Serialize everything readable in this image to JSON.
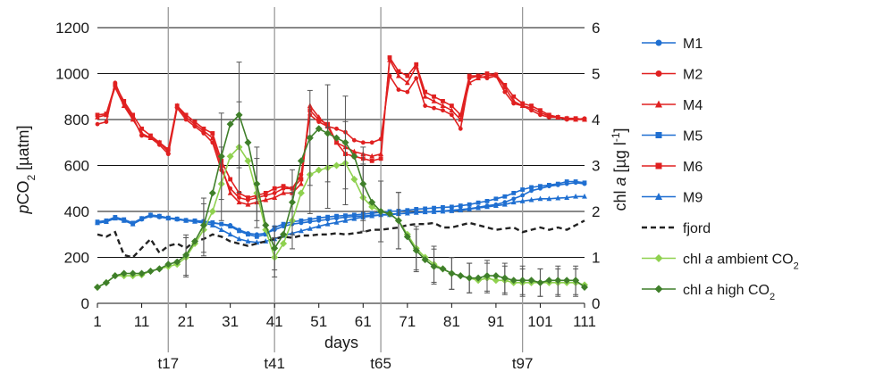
{
  "chart_data": {
    "type": "line",
    "xlabel": "days",
    "ylabel_left": "pCO2 [µatm]",
    "ylabel_right": "chl a [µg l-1]",
    "xlim": [
      1,
      111
    ],
    "ylim_left": [
      0,
      1200
    ],
    "ylim_right": [
      0,
      6
    ],
    "x_ticks": [
      "1",
      "11",
      "21",
      "31",
      "41",
      "51",
      "61",
      "71",
      "81",
      "91",
      "101",
      "111"
    ],
    "y_left_ticks": [
      "0",
      "200",
      "400",
      "600",
      "800",
      "1000",
      "1200"
    ],
    "y_right_ticks": [
      "0",
      "1",
      "2",
      "3",
      "4",
      "5",
      "6"
    ],
    "grid": "horizontal",
    "legend_position": "right",
    "vertical_markers": [
      {
        "x": 17,
        "label": "t17"
      },
      {
        "x": 41,
        "label": "t41"
      },
      {
        "x": 65,
        "label": "t65"
      },
      {
        "x": 97,
        "label": "t97"
      }
    ],
    "series": [
      {
        "name": "M1",
        "axis": "left",
        "color": "#1f6fd1",
        "marker": "circle",
        "x": [
          1,
          3,
          5,
          7,
          9,
          11,
          13,
          15,
          17,
          19,
          21,
          23,
          25,
          27,
          29,
          31,
          33,
          35,
          37,
          39,
          41,
          43,
          45,
          47,
          49,
          51,
          53,
          55,
          57,
          59,
          61,
          63,
          65,
          67,
          69,
          71,
          73,
          75,
          77,
          79,
          81,
          83,
          85,
          87,
          89,
          91,
          93,
          95,
          97,
          99,
          101,
          103,
          105,
          107,
          109,
          111
        ],
        "y": [
          350,
          355,
          370,
          360,
          345,
          365,
          380,
          375,
          370,
          365,
          360,
          358,
          355,
          350,
          345,
          340,
          320,
          305,
          300,
          305,
          320,
          335,
          345,
          350,
          355,
          360,
          365,
          370,
          375,
          378,
          380,
          383,
          385,
          388,
          390,
          393,
          396,
          398,
          400,
          402,
          405,
          408,
          412,
          418,
          425,
          430,
          440,
          455,
          470,
          490,
          500,
          510,
          515,
          520,
          525,
          520
        ]
      },
      {
        "name": "M2",
        "axis": "left",
        "color": "#e02020",
        "marker": "circle",
        "x": [
          1,
          3,
          5,
          7,
          9,
          11,
          13,
          15,
          17,
          19,
          21,
          23,
          25,
          27,
          29,
          31,
          33,
          35,
          37,
          39,
          41,
          43,
          45,
          47,
          49,
          51,
          53,
          55,
          57,
          59,
          61,
          63,
          65,
          67,
          69,
          71,
          73,
          75,
          77,
          79,
          81,
          83,
          85,
          87,
          89,
          91,
          93,
          95,
          97,
          99,
          101,
          103,
          105,
          107,
          109,
          111
        ],
        "y": [
          780,
          790,
          960,
          870,
          810,
          730,
          720,
          690,
          650,
          850,
          800,
          770,
          740,
          700,
          580,
          500,
          460,
          450,
          460,
          470,
          480,
          500,
          500,
          560,
          820,
          790,
          770,
          760,
          745,
          710,
          700,
          700,
          715,
          990,
          930,
          920,
          980,
          860,
          850,
          840,
          820,
          760,
          980,
          990,
          980,
          990,
          920,
          870,
          860,
          840,
          820,
          810,
          810,
          800,
          800,
          805
        ]
      },
      {
        "name": "M4",
        "axis": "left",
        "color": "#e02020",
        "marker": "triangle",
        "x": [
          1,
          3,
          5,
          7,
          9,
          11,
          13,
          15,
          17,
          19,
          21,
          23,
          25,
          27,
          29,
          31,
          33,
          35,
          37,
          39,
          41,
          43,
          45,
          47,
          49,
          51,
          53,
          55,
          57,
          59,
          61,
          63,
          65,
          67,
          69,
          71,
          73,
          75,
          77,
          79,
          81,
          83,
          85,
          87,
          89,
          91,
          93,
          95,
          97,
          99,
          101,
          103,
          105,
          107,
          109,
          111
        ],
        "y": [
          810,
          820,
          940,
          860,
          800,
          740,
          720,
          700,
          660,
          860,
          810,
          780,
          750,
          720,
          600,
          480,
          440,
          430,
          440,
          450,
          460,
          480,
          480,
          520,
          860,
          810,
          770,
          700,
          680,
          660,
          650,
          640,
          650,
          1060,
          990,
          960,
          1030,
          900,
          880,
          860,
          840,
          800,
          960,
          980,
          990,
          995,
          940,
          880,
          860,
          850,
          830,
          815,
          810,
          805,
          800,
          800
        ]
      },
      {
        "name": "M5",
        "axis": "left",
        "color": "#1f6fd1",
        "marker": "square",
        "x": [
          1,
          3,
          5,
          7,
          9,
          11,
          13,
          15,
          17,
          19,
          21,
          23,
          25,
          27,
          29,
          31,
          33,
          35,
          37,
          39,
          41,
          43,
          45,
          47,
          49,
          51,
          53,
          55,
          57,
          59,
          61,
          63,
          65,
          67,
          69,
          71,
          73,
          75,
          77,
          79,
          81,
          83,
          85,
          87,
          89,
          91,
          93,
          95,
          97,
          99,
          101,
          103,
          105,
          107,
          109,
          111
        ],
        "y": [
          355,
          360,
          375,
          365,
          350,
          370,
          385,
          380,
          372,
          368,
          362,
          360,
          357,
          352,
          345,
          335,
          315,
          300,
          290,
          300,
          330,
          345,
          355,
          360,
          365,
          372,
          376,
          380,
          382,
          385,
          388,
          392,
          396,
          400,
          402,
          405,
          410,
          412,
          415,
          418,
          420,
          425,
          430,
          438,
          445,
          455,
          465,
          480,
          495,
          505,
          510,
          515,
          520,
          530,
          530,
          525
        ]
      },
      {
        "name": "M6",
        "axis": "left",
        "color": "#e02020",
        "marker": "square",
        "x": [
          1,
          3,
          5,
          7,
          9,
          11,
          13,
          15,
          17,
          19,
          21,
          23,
          25,
          27,
          29,
          31,
          33,
          35,
          37,
          39,
          41,
          43,
          45,
          47,
          49,
          51,
          53,
          55,
          57,
          59,
          61,
          63,
          65,
          67,
          69,
          71,
          73,
          75,
          77,
          79,
          81,
          83,
          85,
          87,
          89,
          91,
          93,
          95,
          97,
          99,
          101,
          103,
          105,
          107,
          109,
          111
        ],
        "y": [
          820,
          825,
          950,
          880,
          820,
          760,
          730,
          700,
          670,
          860,
          820,
          790,
          760,
          740,
          620,
          540,
          480,
          460,
          470,
          480,
          500,
          510,
          500,
          540,
          840,
          800,
          780,
          700,
          650,
          640,
          630,
          620,
          630,
          1070,
          1010,
          990,
          1040,
          920,
          900,
          880,
          860,
          820,
          990,
          990,
          1000,
          995,
          950,
          900,
          870,
          860,
          840,
          820,
          810,
          805,
          805,
          800
        ]
      },
      {
        "name": "M9",
        "axis": "left",
        "color": "#1f6fd1",
        "marker": "triangle",
        "x": [
          1,
          3,
          5,
          7,
          9,
          11,
          13,
          15,
          17,
          19,
          21,
          23,
          25,
          27,
          29,
          31,
          33,
          35,
          37,
          39,
          41,
          43,
          45,
          47,
          49,
          51,
          53,
          55,
          57,
          59,
          61,
          63,
          65,
          67,
          69,
          71,
          73,
          75,
          77,
          79,
          81,
          83,
          85,
          87,
          89,
          91,
          93,
          95,
          97,
          99,
          101,
          103,
          105,
          107,
          109,
          111
        ],
        "y": [
          350,
          355,
          370,
          360,
          345,
          368,
          383,
          378,
          370,
          366,
          360,
          356,
          350,
          340,
          320,
          300,
          280,
          270,
          265,
          270,
          280,
          295,
          305,
          315,
          325,
          335,
          345,
          352,
          360,
          368,
          375,
          380,
          385,
          385,
          390,
          392,
          395,
          397,
          398,
          400,
          402,
          405,
          410,
          415,
          420,
          425,
          430,
          440,
          445,
          450,
          455,
          455,
          458,
          460,
          465,
          465
        ]
      },
      {
        "name": "fjord",
        "axis": "left",
        "color": "#222222",
        "dashed": true,
        "x": [
          1,
          3,
          5,
          7,
          9,
          11,
          13,
          15,
          17,
          19,
          21,
          23,
          25,
          27,
          29,
          31,
          33,
          35,
          37,
          39,
          41,
          43,
          45,
          47,
          49,
          51,
          53,
          55,
          57,
          59,
          61,
          63,
          65,
          67,
          69,
          71,
          73,
          75,
          77,
          79,
          81,
          83,
          85,
          87,
          89,
          91,
          93,
          95,
          97,
          99,
          101,
          103,
          105,
          107,
          109,
          111
        ],
        "y": [
          300,
          290,
          310,
          210,
          200,
          240,
          280,
          220,
          250,
          260,
          240,
          270,
          280,
          300,
          290,
          270,
          260,
          250,
          260,
          270,
          280,
          290,
          285,
          295,
          295,
          300,
          300,
          305,
          300,
          305,
          310,
          320,
          320,
          325,
          330,
          340,
          345,
          345,
          350,
          330,
          330,
          340,
          350,
          340,
          330,
          320,
          325,
          330,
          310,
          320,
          330,
          320,
          330,
          320,
          340,
          360
        ]
      },
      {
        "name": "chl a ambient CO2",
        "axis": "right",
        "color": "#8fd14f",
        "marker": "diamond",
        "x": [
          1,
          3,
          5,
          7,
          9,
          11,
          13,
          15,
          17,
          19,
          21,
          23,
          25,
          27,
          29,
          31,
          33,
          35,
          37,
          39,
          41,
          43,
          45,
          47,
          49,
          51,
          53,
          55,
          57,
          59,
          61,
          63,
          65,
          67,
          69,
          71,
          73,
          75,
          77,
          79,
          81,
          83,
          85,
          87,
          89,
          91,
          93,
          95,
          97,
          99,
          101,
          103,
          105,
          107,
          109,
          111
        ],
        "y": [
          0.35,
          0.45,
          0.6,
          0.6,
          0.6,
          0.62,
          0.7,
          0.75,
          0.8,
          0.85,
          1.0,
          1.3,
          1.6,
          2.0,
          2.6,
          3.2,
          3.4,
          3.1,
          2.4,
          1.6,
          1.0,
          1.3,
          1.8,
          2.4,
          2.8,
          2.9,
          2.95,
          3.0,
          3.05,
          2.7,
          2.3,
          2.1,
          2.0,
          1.95,
          1.8,
          1.5,
          1.2,
          1.0,
          0.85,
          0.75,
          0.65,
          0.6,
          0.55,
          0.5,
          0.55,
          0.5,
          0.5,
          0.45,
          0.45,
          0.45,
          0.45,
          0.45,
          0.45,
          0.45,
          0.45,
          0.4
        ]
      },
      {
        "name": "chl a high CO2",
        "axis": "right",
        "color": "#3f7f2a",
        "marker": "diamond",
        "x": [
          1,
          3,
          5,
          7,
          9,
          11,
          13,
          15,
          17,
          19,
          21,
          23,
          25,
          27,
          29,
          31,
          33,
          35,
          37,
          39,
          41,
          43,
          45,
          47,
          49,
          51,
          53,
          55,
          57,
          59,
          61,
          63,
          65,
          67,
          69,
          71,
          73,
          75,
          77,
          79,
          81,
          83,
          85,
          87,
          89,
          91,
          93,
          95,
          97,
          99,
          101,
          103,
          105,
          107,
          109,
          111
        ],
        "y": [
          0.35,
          0.45,
          0.6,
          0.65,
          0.65,
          0.65,
          0.7,
          0.75,
          0.85,
          0.9,
          1.05,
          1.35,
          1.7,
          2.4,
          3.2,
          3.9,
          4.1,
          3.5,
          2.6,
          1.7,
          1.2,
          1.5,
          2.2,
          3.1,
          3.6,
          3.8,
          3.7,
          3.6,
          3.5,
          3.2,
          2.6,
          2.2,
          2.0,
          1.95,
          1.8,
          1.45,
          1.15,
          0.95,
          0.8,
          0.75,
          0.65,
          0.6,
          0.55,
          0.55,
          0.6,
          0.6,
          0.55,
          0.5,
          0.5,
          0.5,
          0.45,
          0.5,
          0.5,
          0.5,
          0.5,
          0.35
        ]
      }
    ]
  },
  "legend": [
    "M1",
    "M2",
    "M4",
    "M5",
    "M6",
    "M9",
    "fjord",
    "chl a ambient CO2",
    "chl a high CO2"
  ]
}
